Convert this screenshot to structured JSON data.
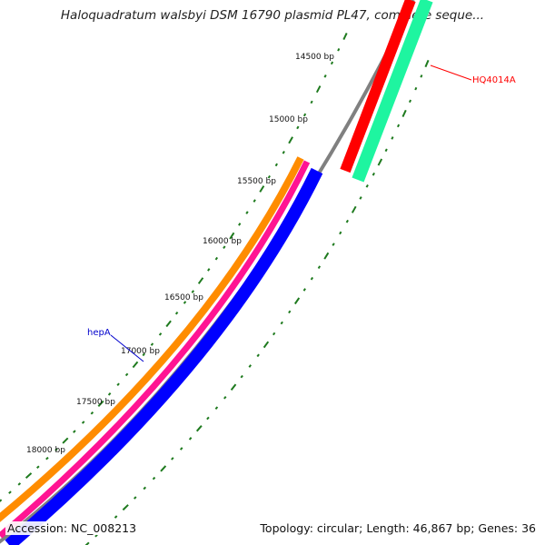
{
  "title": "Haloquadratum walsbyi DSM 16790 plasmid PL47, complete seque...",
  "footer": {
    "accession": "Accession: NC_008213",
    "summary": "Topology: circular; Length: 46,867 bp; Genes: 36"
  },
  "ticks": [
    {
      "label": "14500 bp"
    },
    {
      "label": "15000 bp"
    },
    {
      "label": "15500 bp"
    },
    {
      "label": "16000 bp"
    },
    {
      "label": "16500 bp"
    },
    {
      "label": "17000 bp"
    },
    {
      "label": "17500 bp"
    },
    {
      "label": "18000 bp"
    }
  ],
  "genes": [
    {
      "name": "HQ4014A",
      "color": "#ff0000"
    },
    {
      "name": "hepA",
      "color": "#0000cc"
    }
  ],
  "colors": {
    "backbone": "#808080",
    "tick": "#1e7a1e",
    "orange_feature": "#ff8c00",
    "magenta_feature": "#ff1493",
    "blue_feature": "#0000ff",
    "red_feature": "#ff0000",
    "green_feature": "#1ef5a0"
  }
}
